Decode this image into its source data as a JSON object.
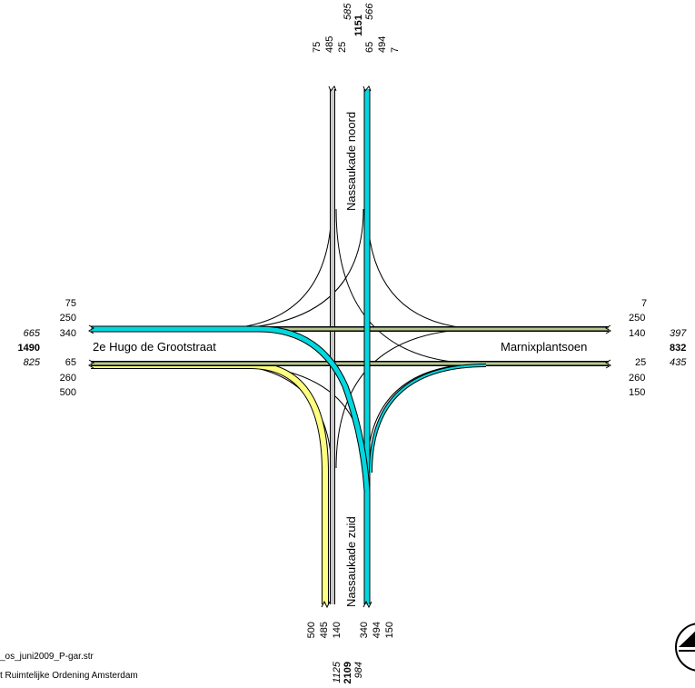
{
  "streets": {
    "north": "Nassaukade noord",
    "south": "Nassaukade zuid",
    "west": "2e Hugo de Grootstraat",
    "east": "Marnixplantsoen"
  },
  "north_arm": {
    "in_lanes": [
      "75",
      "485",
      "25"
    ],
    "out_lanes": [
      "65",
      "494",
      "7"
    ],
    "sub_in": "585",
    "total": "1151",
    "sub_out": "566"
  },
  "south_arm": {
    "in_lanes": [
      "500",
      "485",
      "140"
    ],
    "out_lanes": [
      "340",
      "494",
      "150"
    ],
    "sub_in": "1125",
    "total": "2109",
    "sub_out": "984"
  },
  "west_arm": {
    "lanes_top": [
      "75",
      "250",
      "340"
    ],
    "lanes_bottom": [
      "65",
      "260",
      "500"
    ],
    "sub_top": "665",
    "total": "1490",
    "sub_bottom": "825"
  },
  "east_arm": {
    "lanes_top": [
      "7",
      "250",
      "140"
    ],
    "lanes_bottom": [
      "25",
      "260",
      "150"
    ],
    "sub_top": "397",
    "total": "832",
    "sub_bottom": "435"
  },
  "footer": {
    "file": "_os_juni2009_P-gar.str",
    "org": "t Ruimtelijke Ordening Amsterdam"
  },
  "colors": {
    "cyan": "#00d8e0",
    "yellow": "#ffff80",
    "grey": "#c8c8c8",
    "olive": "#b8c890",
    "line": "#000000"
  },
  "icons": {
    "logo": "logo-icon"
  }
}
